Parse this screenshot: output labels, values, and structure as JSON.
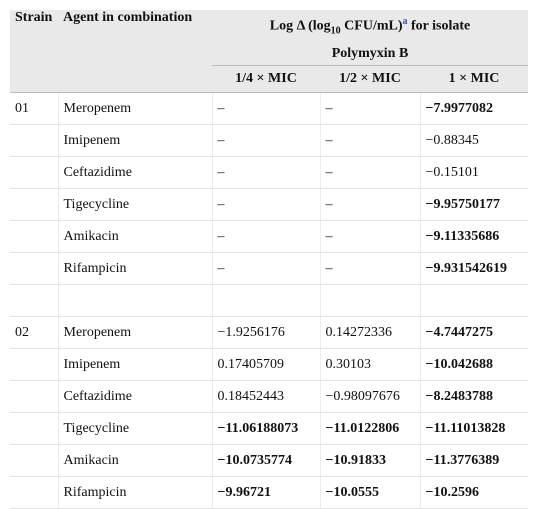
{
  "table": {
    "header": {
      "strain": "Strain",
      "agent": "Agent in combination",
      "title_parts": [
        "Log Δ (log",
        "10",
        "CFU/mL)",
        "a",
        "for isolate"
      ],
      "isolate": "Polymyxin B",
      "columns": [
        "1/4 × MIC",
        "1/2 × MIC",
        "1 × MIC"
      ]
    },
    "groups": [
      {
        "strain": "01",
        "rows": [
          [
            {
              "text": "Meropenem"
            },
            {
              "text": "–"
            },
            {
              "text": "–"
            },
            {
              "text": "−7.9977082",
              "bold": true
            }
          ],
          [
            {
              "text": "Imipenem"
            },
            {
              "text": "–"
            },
            {
              "text": "–"
            },
            {
              "text": "−0.88345"
            }
          ],
          [
            {
              "text": "Ceftazidime"
            },
            {
              "text": "–"
            },
            {
              "text": "–"
            },
            {
              "text": "−0.15101"
            }
          ],
          [
            {
              "text": "Tigecycline"
            },
            {
              "text": "–"
            },
            {
              "text": "–"
            },
            {
              "text": "−9.95750177",
              "bold": true
            }
          ],
          [
            {
              "text": "Amikacin"
            },
            {
              "text": "–"
            },
            {
              "text": "–"
            },
            {
              "text": "−9.11335686",
              "bold": true
            }
          ],
          [
            {
              "text": "Rifampicin"
            },
            {
              "text": "–"
            },
            {
              "text": "–"
            },
            {
              "text": "−9.931542619",
              "bold": true
            }
          ]
        ]
      },
      {
        "strain": "02",
        "rows": [
          [
            {
              "text": "Meropenem"
            },
            {
              "text": "−1.9256176"
            },
            {
              "text": "0.14272336"
            },
            {
              "text": "−4.7447275",
              "bold": true
            }
          ],
          [
            {
              "text": "Imipenem"
            },
            {
              "text": "0.17405709"
            },
            {
              "text": "0.30103"
            },
            {
              "text": "−10.042688",
              "bold": true
            }
          ],
          [
            {
              "text": "Ceftazidime"
            },
            {
              "text": "0.18452443"
            },
            {
              "text": "−0.98097676"
            },
            {
              "text": "−8.2483788",
              "bold": true
            }
          ],
          [
            {
              "text": "Tigecycline"
            },
            {
              "text": "−11.06188073",
              "bold": true
            },
            {
              "text": "−11.0122806",
              "bold": true
            },
            {
              "text": "−11.11013828",
              "bold": true
            }
          ],
          [
            {
              "text": "Amikacin"
            },
            {
              "text": "−10.0735774",
              "bold": true
            },
            {
              "text": "−10.91833",
              "bold": true
            },
            {
              "text": "−11.3776389",
              "bold": true
            }
          ],
          [
            {
              "text": "Rifampicin"
            },
            {
              "text": "−9.96721",
              "bold": true
            },
            {
              "text": "−10.0555",
              "bold": true
            },
            {
              "text": "−10.2596",
              "bold": true
            }
          ]
        ]
      }
    ]
  }
}
